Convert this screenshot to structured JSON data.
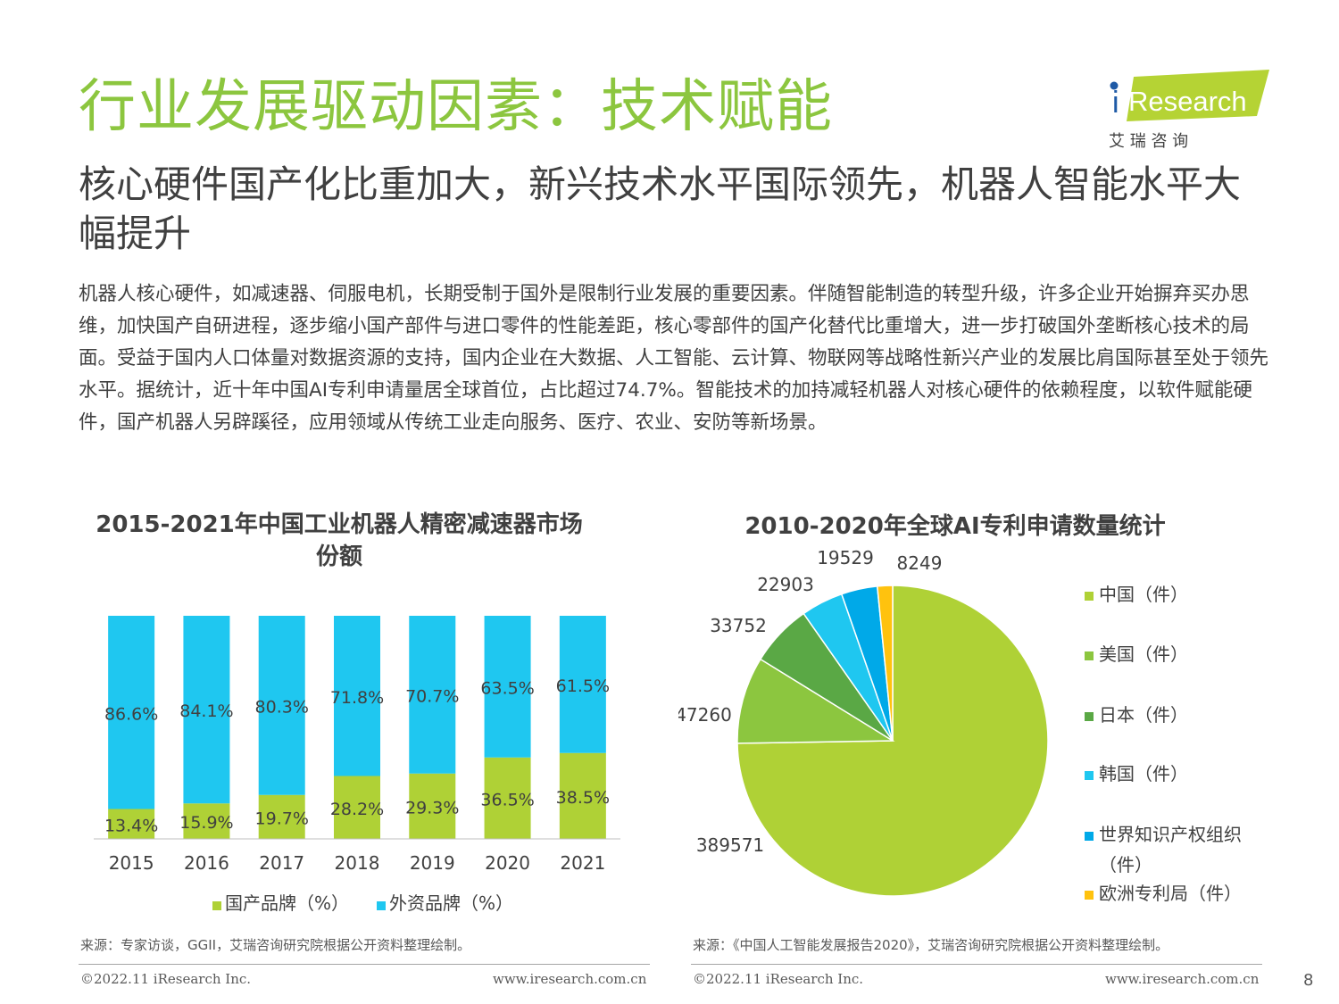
{
  "header": {
    "title": "行业发展驱动因素：技术赋能",
    "subtitle": "核心硬件国产化比重加大，新兴技术水平国际领先，机器人智能水平大幅提升",
    "logo_text": "iResearch",
    "logo_sub": "艾 瑞 咨 询"
  },
  "body_text": "机器人核心硬件，如减速器、伺服电机，长期受制于国外是限制行业发展的重要因素。伴随智能制造的转型升级，许多企业开始摒弃买办思维，加快国产自研进程，逐步缩小国产部件与进口零件的性能差距，核心零部件的国产化替代比重增大，进一步打破国外垄断核心技术的局面。受益于国内人口体量对数据资源的支持，国内企业在大数据、人工智能、云计算、物联网等战略性新兴产业的发展比肩国际甚至处于领先水平。据统计，近十年中国AI专利申请量居全球首位，占比超过74.7%。智能技术的加持减轻机器人对核心硬件的依赖程度，以软件赋能硬件，国产机器人另辟蹊径，应用领域从传统工业走向服务、医疗、农业、安防等新场景。",
  "colors": {
    "green": "#afd136",
    "blue": "#1fc7f0",
    "title_green": "#8cc63f"
  },
  "chart_data": [
    {
      "type": "bar",
      "stacked": true,
      "title": "2015-2021年中国工业机器人精密减速器市场份额",
      "categories": [
        "2015",
        "2016",
        "2017",
        "2018",
        "2019",
        "2020",
        "2021"
      ],
      "series": [
        {
          "name": "国产品牌（%）",
          "color": "#afd136",
          "values": [
            13.4,
            15.9,
            19.7,
            28.2,
            29.3,
            36.5,
            38.5
          ],
          "labels": [
            "13.4%",
            "15.9%",
            "19.7%",
            "28.2%",
            "29.3%",
            "36.5%",
            "38.5%"
          ]
        },
        {
          "name": "外资品牌（%）",
          "color": "#1fc7f0",
          "values": [
            86.6,
            84.1,
            80.3,
            71.8,
            70.7,
            63.5,
            61.5
          ],
          "labels": [
            "86.6%",
            "84.1%",
            "80.3%",
            "71.8%",
            "70.7%",
            "63.5%",
            "61.5%"
          ]
        }
      ],
      "ylim": [
        0,
        100
      ],
      "legend_position": "bottom",
      "source": "来源：专家访谈，GGII，艾瑞咨询研究院根据公开资料整理绘制。"
    },
    {
      "type": "pie",
      "title": "2010-2020年全球AI专利申请数量统计",
      "slices": [
        {
          "name": "中国（件）",
          "value": 389571,
          "color": "#afd136"
        },
        {
          "name": "美国（件）",
          "value": 47260,
          "color": "#8cc63f"
        },
        {
          "name": "日本（件）",
          "value": 33752,
          "color": "#5aa845"
        },
        {
          "name": "韩国（件）",
          "value": 22903,
          "color": "#1fc7f0"
        },
        {
          "name": "世界知识产权组织（件）",
          "value": 19529,
          "color": "#00a9e8"
        },
        {
          "name": "欧洲专利局（件）",
          "value": 8249,
          "color": "#ffc20e"
        }
      ],
      "legend_position": "right",
      "source": "来源：《中国人工智能发展报告2020》，艾瑞咨询研究院根据公开资料整理绘制。"
    }
  ],
  "legend_wipo_line1": "世界知识产权组织",
  "legend_wipo_line2": "（件）",
  "footer": {
    "copyright": "©2022.11 iResearch Inc.",
    "url": "www.iresearch.com.cn",
    "page_number": "8"
  }
}
